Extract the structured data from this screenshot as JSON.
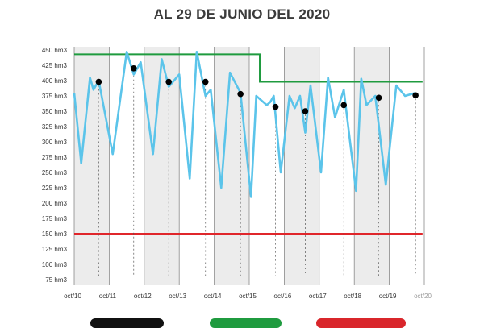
{
  "title": "AL 29 DE JUNIO DEL 2020",
  "colors": {
    "series": "#5bc4ea",
    "max_line": "#1f9b3f",
    "min_line": "#e0262b",
    "dot": "#000000",
    "band": "#ececec",
    "legend_black": "#111111",
    "legend_green": "#1f9b3f",
    "legend_red": "#d9262b"
  },
  "chart_data": {
    "type": "line",
    "title": "AL 29 DE JUNIO DEL 2020",
    "xlabel": "",
    "ylabel": "",
    "ylim": [
      75,
      450
    ],
    "y_unit": "hm3",
    "y_ticks": [
      75,
      100,
      125,
      150,
      175,
      200,
      225,
      250,
      275,
      300,
      325,
      350,
      375,
      400,
      425,
      450
    ],
    "y_tick_labels": [
      "75 hm3",
      "100 hm3",
      "125 hm3",
      "150 hm3",
      "175 hm3",
      "200 hm3",
      "225 hm3",
      "250 hm3",
      "275 hm3",
      "300 hm3",
      "325 hm3",
      "350 hm3",
      "375 hm3",
      "400 hm3",
      "425 hm3",
      "450 hm3"
    ],
    "x_tick_labels": [
      "oct/10",
      "oct/11",
      "oct/12",
      "oct/13",
      "oct/14",
      "oct/15",
      "oct/16",
      "oct/17",
      "oct/18",
      "oct/19",
      "oct/20"
    ],
    "x_range_years": [
      2010,
      2020
    ],
    "grid": true,
    "series": [
      {
        "type": "line",
        "color": "#5bc4ea",
        "x": [
          0.0,
          0.2,
          0.45,
          0.55,
          0.7,
          1.1,
          1.5,
          1.7,
          1.9,
          2.25,
          2.5,
          2.7,
          3.0,
          3.3,
          3.5,
          3.75,
          3.9,
          4.2,
          4.45,
          4.75,
          5.05,
          5.2,
          5.5,
          5.6,
          5.7,
          5.9,
          6.15,
          6.3,
          6.45,
          6.6,
          6.75,
          7.05,
          7.25,
          7.45,
          7.7,
          8.05,
          8.2,
          8.35,
          8.6,
          8.9,
          9.2,
          9.45,
          9.75
        ],
        "y": [
          380,
          265,
          405,
          385,
          400,
          280,
          447,
          410,
          430,
          280,
          435,
          390,
          410,
          240,
          447,
          375,
          385,
          225,
          413,
          380,
          210,
          375,
          360,
          365,
          375,
          250,
          375,
          355,
          375,
          315,
          392,
          250,
          405,
          340,
          385,
          220,
          403,
          360,
          375,
          230,
          392,
          375,
          380
        ]
      },
      {
        "type": "step",
        "color": "#1f9b3f",
        "x": [
          0.0,
          5.3,
          5.3,
          9.95
        ],
        "y": [
          443,
          443,
          398,
          398
        ]
      },
      {
        "type": "hline",
        "color": "#e0262b",
        "y": 150
      },
      {
        "type": "points",
        "color": "#000000",
        "x": [
          0.7,
          1.7,
          2.7,
          3.75,
          4.75,
          5.75,
          6.6,
          7.7,
          8.7,
          9.75
        ],
        "y": [
          398,
          420,
          398,
          398,
          378,
          357,
          350,
          360,
          372,
          376
        ]
      }
    ]
  }
}
